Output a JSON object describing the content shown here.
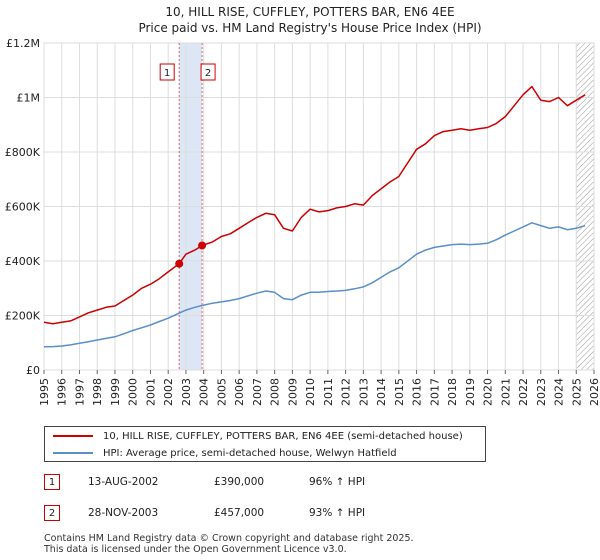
{
  "chart_data": {
    "type": "line",
    "title": "10, HILL RISE, CUFFLEY, POTTERS BAR, EN6 4EE",
    "subtitle": "Price paid vs. HM Land Registry's House Price Index (HPI)",
    "xlabel": "",
    "ylabel": "",
    "xlim": [
      1995,
      2026
    ],
    "ylim": [
      0,
      1200000
    ],
    "y_ticks": [
      {
        "value": 0,
        "label": "£0"
      },
      {
        "value": 200000,
        "label": "£200K"
      },
      {
        "value": 400000,
        "label": "£400K"
      },
      {
        "value": 600000,
        "label": "£600K"
      },
      {
        "value": 800000,
        "label": "£800K"
      },
      {
        "value": 1000000,
        "label": "£1M"
      },
      {
        "value": 1200000,
        "label": "£1.2M"
      }
    ],
    "x_ticks": [
      "1995",
      "1996",
      "1997",
      "1998",
      "1999",
      "2000",
      "2001",
      "2002",
      "2003",
      "2004",
      "2005",
      "2006",
      "2007",
      "2008",
      "2009",
      "2010",
      "2011",
      "2012",
      "2013",
      "2014",
      "2015",
      "2016",
      "2017",
      "2018",
      "2019",
      "2020",
      "2021",
      "2022",
      "2023",
      "2024",
      "2025",
      "2026"
    ],
    "grid": true,
    "shaded_range": [
      2002.62,
      2003.91
    ],
    "hatched_from": 2025.0,
    "series": [
      {
        "name": "10, HILL RISE, CUFFLEY, POTTERS BAR, EN6 4EE (semi-detached house)",
        "color": "#cc0000",
        "x": [
          1995.0,
          1995.5,
          1996.0,
          1996.5,
          1997.0,
          1997.5,
          1998.0,
          1998.5,
          1999.0,
          1999.5,
          2000.0,
          2000.5,
          2001.0,
          2001.5,
          2002.0,
          2002.62,
          2003.0,
          2003.5,
          2003.91,
          2004.5,
          2005.0,
          2005.5,
          2006.0,
          2006.5,
          2007.0,
          2007.5,
          2008.0,
          2008.5,
          2009.0,
          2009.5,
          2010.0,
          2010.5,
          2011.0,
          2011.5,
          2012.0,
          2012.5,
          2013.0,
          2013.5,
          2014.0,
          2014.5,
          2015.0,
          2015.5,
          2016.0,
          2016.5,
          2017.0,
          2017.5,
          2018.0,
          2018.5,
          2019.0,
          2019.5,
          2020.0,
          2020.5,
          2021.0,
          2021.5,
          2022.0,
          2022.5,
          2023.0,
          2023.5,
          2024.0,
          2024.5,
          2025.0,
          2025.5
        ],
        "values": [
          175000,
          170000,
          175000,
          180000,
          195000,
          210000,
          220000,
          230000,
          235000,
          255000,
          275000,
          300000,
          315000,
          335000,
          360000,
          390000,
          425000,
          440000,
          457000,
          470000,
          490000,
          500000,
          520000,
          540000,
          560000,
          575000,
          570000,
          520000,
          510000,
          560000,
          590000,
          580000,
          585000,
          595000,
          600000,
          610000,
          605000,
          640000,
          665000,
          690000,
          710000,
          760000,
          810000,
          830000,
          860000,
          875000,
          880000,
          885000,
          880000,
          885000,
          890000,
          905000,
          930000,
          970000,
          1010000,
          1040000,
          990000,
          985000,
          1000000,
          970000,
          990000,
          1010000
        ]
      },
      {
        "name": "HPI: Average price, semi-detached house, Welwyn Hatfield",
        "color": "#5b8fc9",
        "x": [
          1995.0,
          1995.5,
          1996.0,
          1996.5,
          1997.0,
          1997.5,
          1998.0,
          1998.5,
          1999.0,
          1999.5,
          2000.0,
          2000.5,
          2001.0,
          2001.5,
          2002.0,
          2002.5,
          2003.0,
          2003.5,
          2004.0,
          2004.5,
          2005.0,
          2005.5,
          2006.0,
          2006.5,
          2007.0,
          2007.5,
          2008.0,
          2008.5,
          2009.0,
          2009.5,
          2010.0,
          2010.5,
          2011.0,
          2011.5,
          2012.0,
          2012.5,
          2013.0,
          2013.5,
          2014.0,
          2014.5,
          2015.0,
          2015.5,
          2016.0,
          2016.5,
          2017.0,
          2017.5,
          2018.0,
          2018.5,
          2019.0,
          2019.5,
          2020.0,
          2020.5,
          2021.0,
          2021.5,
          2022.0,
          2022.5,
          2023.0,
          2023.5,
          2024.0,
          2024.5,
          2025.0,
          2025.5
        ],
        "values": [
          85000,
          86000,
          88000,
          92000,
          98000,
          104000,
          110000,
          116000,
          122000,
          133000,
          145000,
          155000,
          165000,
          178000,
          190000,
          205000,
          220000,
          230000,
          238000,
          245000,
          250000,
          255000,
          262000,
          272000,
          282000,
          290000,
          285000,
          262000,
          258000,
          275000,
          285000,
          285000,
          288000,
          290000,
          292000,
          298000,
          305000,
          320000,
          340000,
          360000,
          375000,
          400000,
          425000,
          440000,
          450000,
          455000,
          460000,
          462000,
          460000,
          462000,
          465000,
          478000,
          495000,
          510000,
          525000,
          540000,
          530000,
          520000,
          525000,
          515000,
          520000,
          530000
        ]
      }
    ],
    "markers": [
      {
        "label": "1",
        "x": 2002.62,
        "value": 390000
      },
      {
        "label": "2",
        "x": 2003.91,
        "value": 457000
      }
    ]
  },
  "legend": {
    "items": [
      {
        "label": "10, HILL RISE, CUFFLEY, POTTERS BAR, EN6 4EE (semi-detached house)",
        "color": "#cc0000"
      },
      {
        "label": "HPI: Average price, semi-detached house, Welwyn Hatfield",
        "color": "#5b8fc9"
      }
    ]
  },
  "sales": [
    {
      "num": "1",
      "date": "13-AUG-2002",
      "price": "£390,000",
      "hpi": "96% ↑ HPI"
    },
    {
      "num": "2",
      "date": "28-NOV-2003",
      "price": "£457,000",
      "hpi": "93% ↑ HPI"
    }
  ],
  "footer": {
    "line1": "Contains HM Land Registry data © Crown copyright and database right 2025.",
    "line2": "This data is licensed under the Open Government Licence v3.0."
  }
}
